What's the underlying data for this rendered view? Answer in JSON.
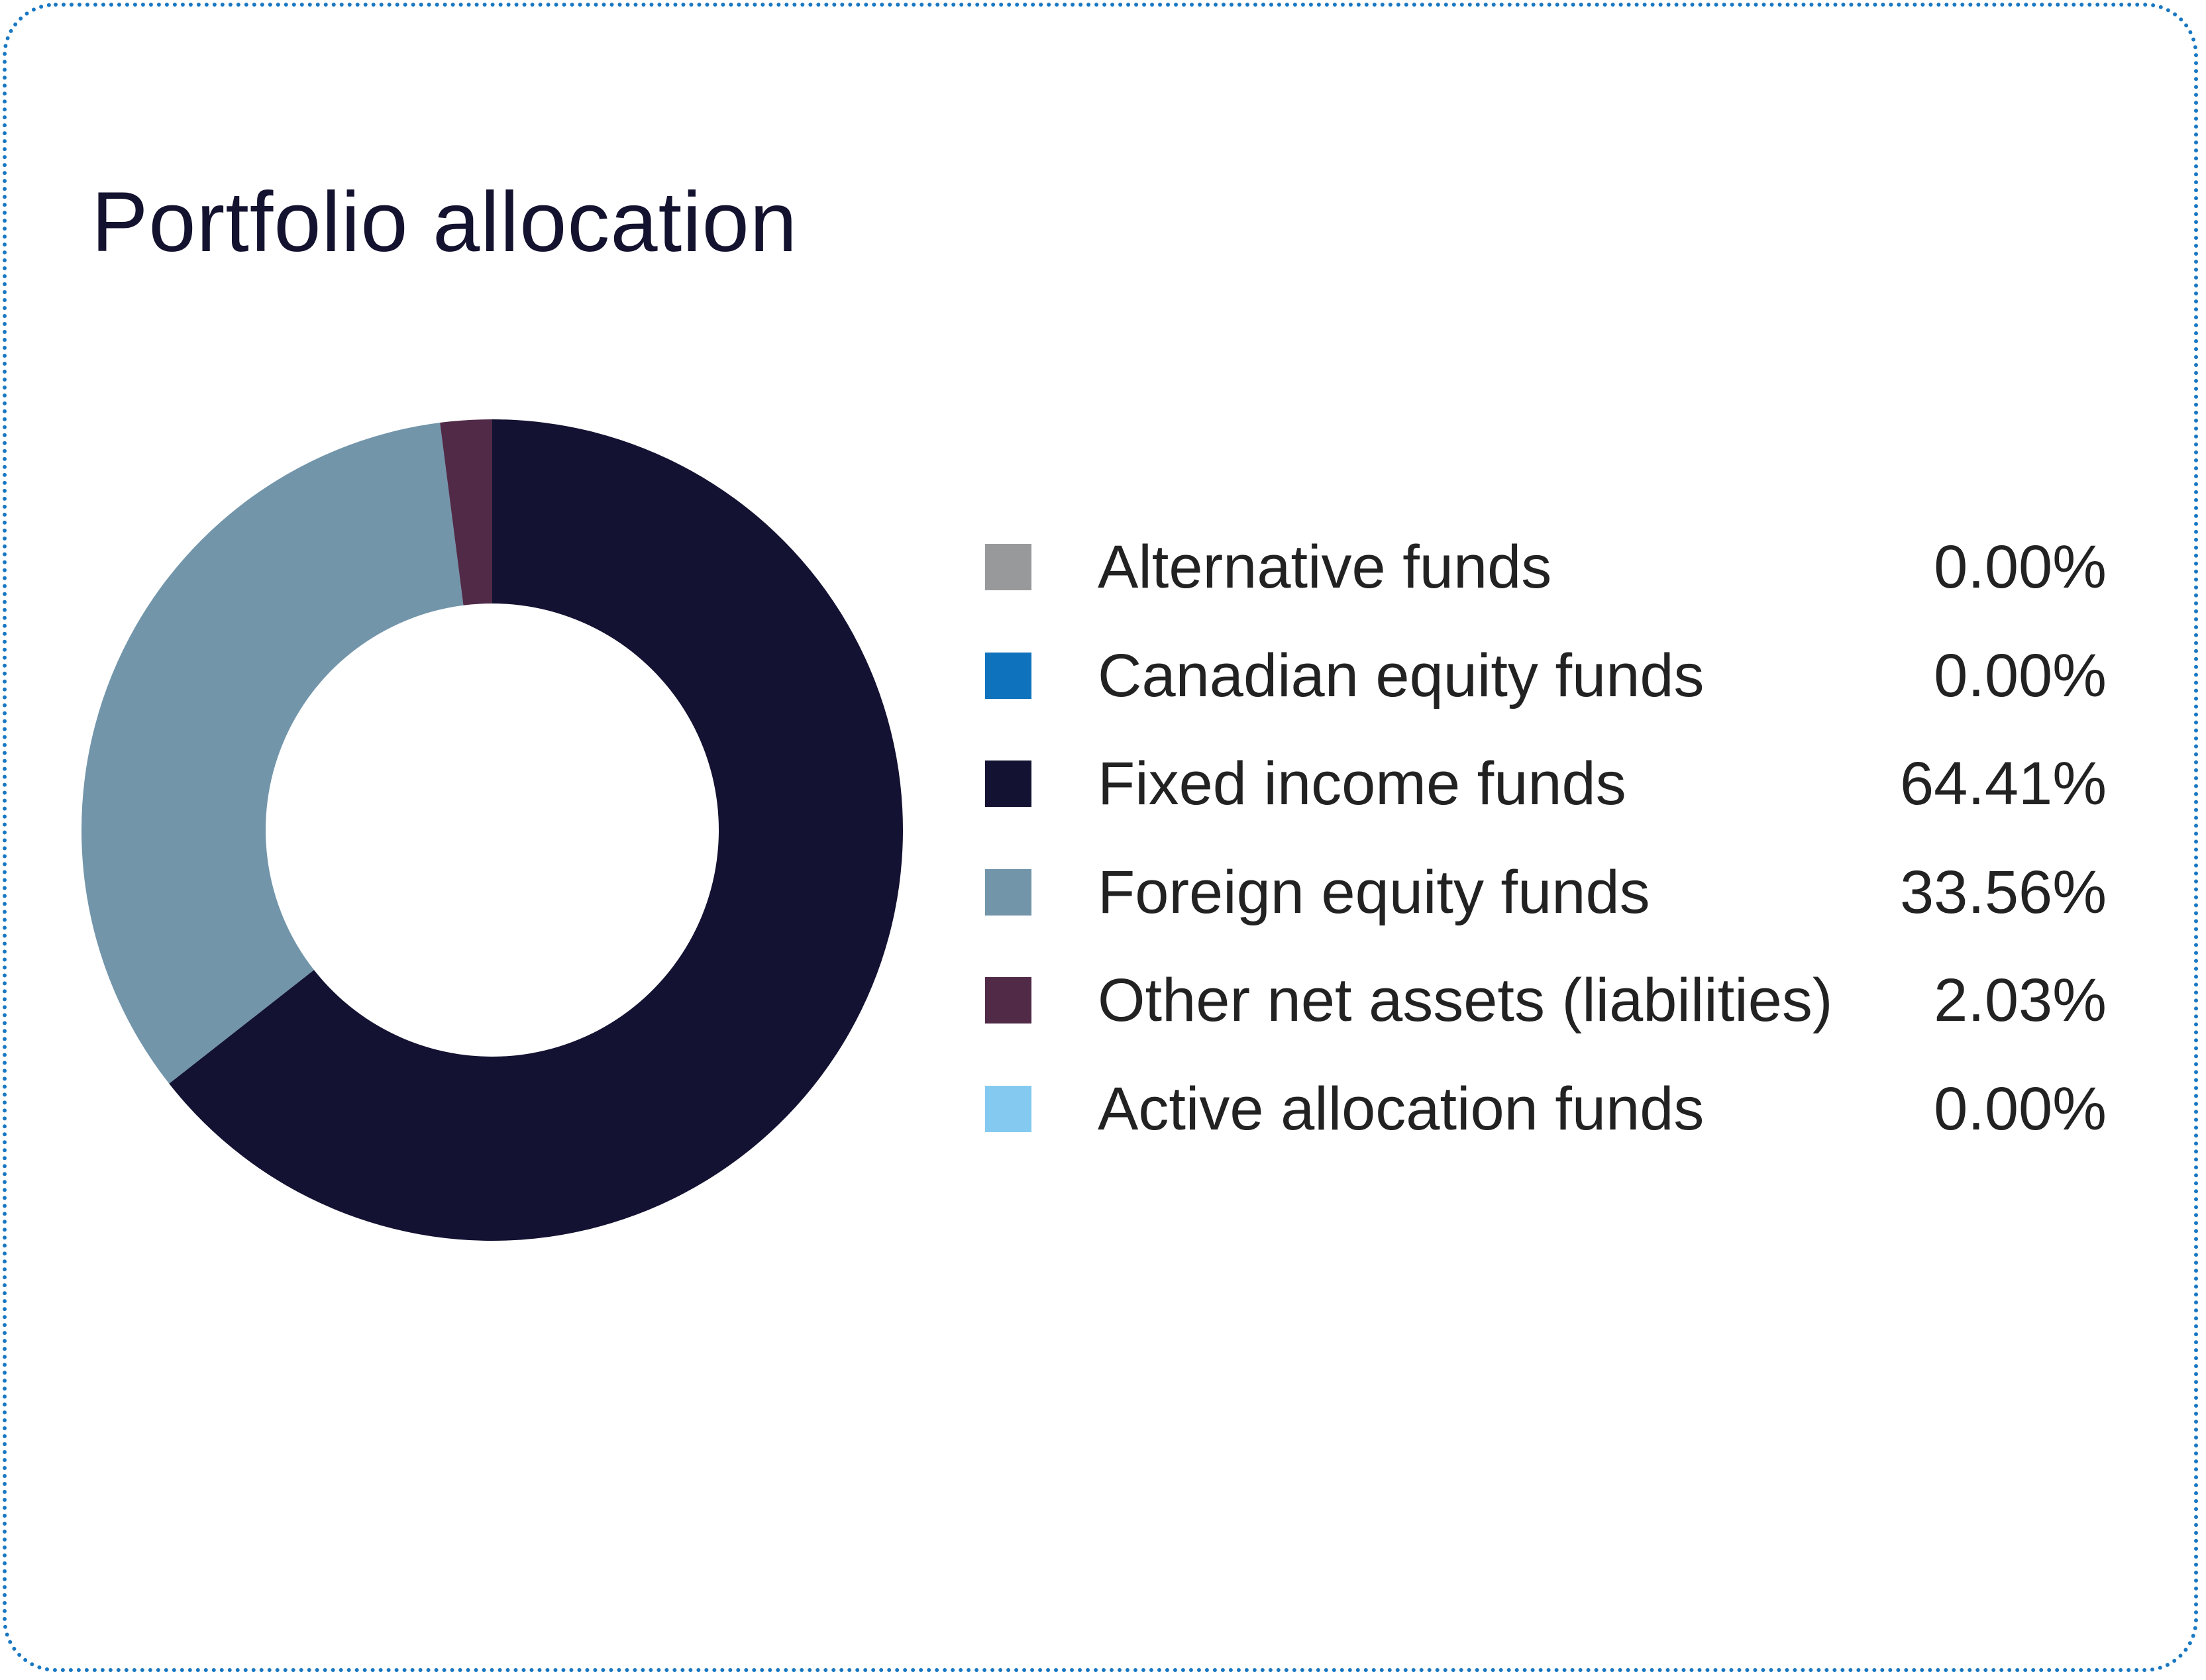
{
  "title": "Portfolio allocation",
  "chart_data": {
    "type": "pie",
    "subtype": "donut",
    "title": "Portfolio allocation",
    "legend_position": "right",
    "slices": [
      {
        "label": "Alternative funds",
        "value": 0.0,
        "display": "0.00%",
        "color": "#98999b"
      },
      {
        "label": "Canadian equity funds",
        "value": 0.0,
        "display": "0.00%",
        "color": "#0f72bd"
      },
      {
        "label": "Fixed income funds",
        "value": 64.41,
        "display": "64.41%",
        "color": "#131232"
      },
      {
        "label": "Foreign equity funds",
        "value": 33.56,
        "display": "33.56%",
        "color": "#7295aa"
      },
      {
        "label": "Other net assets (liabilities)",
        "value": 2.03,
        "display": "2.03%",
        "color": "#512a48"
      },
      {
        "label": "Active allocation funds",
        "value": 0.0,
        "display": "0.00%",
        "color": "#84caf0"
      }
    ]
  }
}
